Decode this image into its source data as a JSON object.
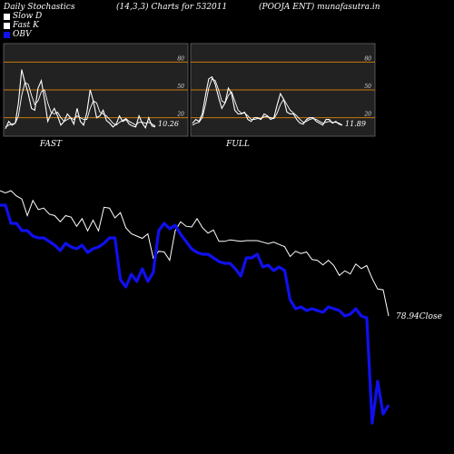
{
  "header": {
    "left": "Daily Stochastics",
    "center": "(14,3,3) Charts for 532011",
    "right": "(POOJA ENT) munafasutra.in"
  },
  "legend": [
    {
      "label": "Slow  D",
      "color": "#ffffff"
    },
    {
      "label": "Fast K",
      "color": "#ffffff"
    },
    {
      "label": "OBV",
      "color": "#0000ff"
    }
  ],
  "colors": {
    "background": "#000000",
    "panel": "#222222",
    "level_line": "#c8780a",
    "obv": "#1010ee",
    "price": "#ffffff"
  },
  "chart_data": [
    {
      "type": "line",
      "title": "FAST",
      "ylim": [
        0,
        100
      ],
      "levels": [
        20,
        50,
        80
      ],
      "last_value_label": "10.26",
      "series": [
        {
          "name": "Fast K",
          "values": [
            8,
            16,
            12,
            14,
            36,
            72,
            58,
            46,
            30,
            28,
            52,
            60,
            40,
            16,
            24,
            30,
            22,
            12,
            16,
            24,
            20,
            13,
            30,
            16,
            12,
            26,
            50,
            38,
            20,
            22,
            28,
            17,
            14,
            10,
            13,
            22,
            16,
            18,
            13,
            11,
            10,
            22,
            14,
            9,
            20,
            11,
            10
          ]
        },
        {
          "name": "Slow  D",
          "values": [
            10,
            12,
            13,
            14,
            22,
            44,
            58,
            56,
            44,
            34,
            38,
            48,
            50,
            36,
            26,
            24,
            26,
            20,
            16,
            18,
            20,
            18,
            22,
            20,
            18,
            18,
            30,
            38,
            36,
            26,
            24,
            22,
            18,
            14,
            12,
            15,
            17,
            19,
            16,
            14,
            12,
            15,
            15,
            14,
            15,
            13,
            11
          ]
        }
      ]
    },
    {
      "type": "line",
      "title": "FULL",
      "ylim": [
        0,
        100
      ],
      "levels": [
        20,
        50,
        80
      ],
      "last_value_label": "11.89",
      "series": [
        {
          "name": "Fast K",
          "values": [
            14,
            18,
            16,
            24,
            44,
            62,
            64,
            56,
            42,
            30,
            36,
            52,
            46,
            28,
            24,
            24,
            26,
            18,
            16,
            20,
            20,
            18,
            24,
            22,
            18,
            20,
            34,
            46,
            40,
            26,
            24,
            24,
            18,
            14,
            13,
            18,
            20,
            20,
            16,
            14,
            12,
            18,
            18,
            14,
            16,
            13,
            12
          ]
        },
        {
          "name": "Slow  D",
          "values": [
            12,
            14,
            15,
            20,
            34,
            52,
            62,
            60,
            50,
            38,
            36,
            44,
            48,
            38,
            28,
            25,
            25,
            22,
            18,
            18,
            19,
            19,
            21,
            21,
            20,
            19,
            25,
            34,
            40,
            34,
            28,
            25,
            22,
            18,
            15,
            16,
            18,
            19,
            18,
            16,
            14,
            15,
            16,
            15,
            15,
            14,
            12
          ]
        }
      ]
    },
    {
      "type": "line",
      "title": "",
      "close_label": "78.94Close",
      "series": [
        {
          "name": "Price",
          "values": [
            95.5,
            95.2,
            95.5,
            94.8,
            94.4,
            92.2,
            94.2,
            93.0,
            93.2,
            92.4,
            92.2,
            91.4,
            92.2,
            92.0,
            90.8,
            91.8,
            90.2,
            91.6,
            90.2,
            93.3,
            93.2,
            91.9,
            92.6,
            90.6,
            89.8,
            89.5,
            89.2,
            89.8,
            86.6,
            87.5,
            87.4,
            86.3,
            90.2,
            91.4,
            90.8,
            90.7,
            91.8,
            90.6,
            89.9,
            90.3,
            88.8,
            88.8,
            89.0,
            88.9,
            88.8,
            88.9,
            88.9,
            88.9,
            88.7,
            88.5,
            88.7,
            88.4,
            88.1,
            86.8,
            87.5,
            87.2,
            87.4,
            86.4,
            86.3,
            85.7,
            86.3,
            85.6,
            84.3,
            84.9,
            84.5,
            85.8,
            85.2,
            85.6,
            83.9,
            82.5,
            82.4,
            78.94
          ]
        },
        {
          "name": "OBV",
          "values": [
            92.0,
            92.0,
            90.0,
            90.0,
            89.2,
            89.2,
            88.6,
            88.4,
            88.4,
            88.0,
            87.6,
            87.0,
            87.8,
            87.4,
            87.2,
            87.6,
            86.8,
            87.2,
            87.4,
            87.8,
            88.4,
            88.4,
            83.8,
            83.0,
            84.4,
            83.6,
            85.0,
            83.6,
            84.6,
            89.2,
            90.0,
            89.4,
            89.8,
            88.8,
            88.0,
            87.2,
            86.8,
            86.6,
            86.6,
            86.2,
            85.8,
            85.6,
            85.6,
            85.0,
            84.2,
            86.2,
            86.2,
            86.6,
            85.2,
            85.4,
            84.8,
            85.2,
            84.8,
            81.6,
            80.6,
            80.8,
            80.4,
            80.6,
            80.4,
            80.2,
            80.8,
            80.6,
            80.4,
            79.8,
            80.0,
            80.6,
            79.8,
            79.6,
            68.0,
            72.6,
            69.0,
            70.0
          ]
        }
      ]
    }
  ]
}
